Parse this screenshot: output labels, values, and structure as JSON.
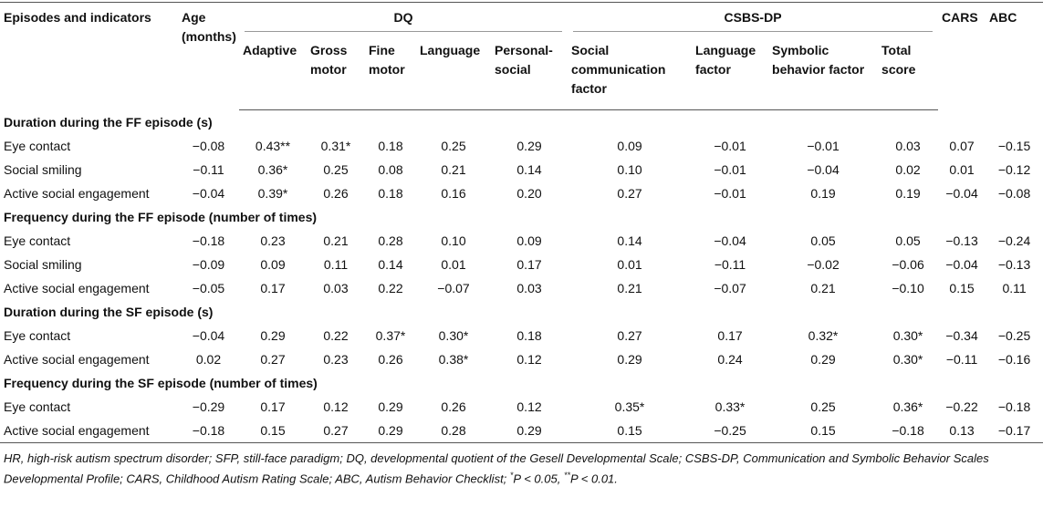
{
  "header": {
    "label": "Episodes and indicators",
    "age": "Age (months)",
    "dq": "DQ",
    "csbs": "CSBS-DP",
    "cars": "CARS",
    "abc": "ABC",
    "dq_sub": [
      "Adaptive",
      "Gross motor",
      "Fine motor",
      "Language",
      "Personal-social"
    ],
    "csbs_sub": [
      "Social communication factor",
      "Language factor",
      "Symbolic behavior factor",
      "Total score"
    ]
  },
  "sections": [
    {
      "title": "Duration during the FF episode (s)",
      "rows": [
        {
          "label": "Eye contact",
          "values": [
            "−0.08",
            "0.43**",
            "0.31*",
            "0.18",
            "0.25",
            "0.29",
            "0.09",
            "−0.01",
            "−0.01",
            "0.03",
            "0.07",
            "−0.15"
          ]
        },
        {
          "label": "Social smiling",
          "values": [
            "−0.11",
            "0.36*",
            "0.25",
            "0.08",
            "0.21",
            "0.14",
            "0.10",
            "−0.01",
            "−0.04",
            "0.02",
            "0.01",
            "−0.12"
          ]
        },
        {
          "label": "Active social engagement",
          "values": [
            "−0.04",
            "0.39*",
            "0.26",
            "0.18",
            "0.16",
            "0.20",
            "0.27",
            "−0.01",
            "0.19",
            "0.19",
            "−0.04",
            "−0.08"
          ]
        }
      ]
    },
    {
      "title": "Frequency during the FF episode (number of times)",
      "rows": [
        {
          "label": "Eye contact",
          "values": [
            "−0.18",
            "0.23",
            "0.21",
            "0.28",
            "0.10",
            "0.09",
            "0.14",
            "−0.04",
            "0.05",
            "0.05",
            "−0.13",
            "−0.24"
          ]
        },
        {
          "label": "Social smiling",
          "values": [
            "−0.09",
            "0.09",
            "0.11",
            "0.14",
            "0.01",
            "0.17",
            "0.01",
            "−0.11",
            "−0.02",
            "−0.06",
            "−0.04",
            "−0.13"
          ]
        },
        {
          "label": "Active social engagement",
          "values": [
            "−0.05",
            "0.17",
            "0.03",
            "0.22",
            "−0.07",
            "0.03",
            "0.21",
            "−0.07",
            "0.21",
            "−0.10",
            "0.15",
            "0.11"
          ]
        }
      ]
    },
    {
      "title": "Duration during the SF episode (s)",
      "rows": [
        {
          "label": "Eye contact",
          "values": [
            "−0.04",
            "0.29",
            "0.22",
            "0.37*",
            "0.30*",
            "0.18",
            "0.27",
            "0.17",
            "0.32*",
            "0.30*",
            "−0.34",
            "−0.25"
          ]
        },
        {
          "label": "Active social engagement",
          "values": [
            "0.02",
            "0.27",
            "0.23",
            "0.26",
            "0.38*",
            "0.12",
            "0.29",
            "0.24",
            "0.29",
            "0.30*",
            "−0.11",
            "−0.16"
          ]
        }
      ]
    },
    {
      "title": "Frequency during the SF episode (number of times)",
      "rows": [
        {
          "label": "Eye contact",
          "values": [
            "−0.29",
            "0.17",
            "0.12",
            "0.29",
            "0.26",
            "0.12",
            "0.35*",
            "0.33*",
            "0.25",
            "0.36*",
            "−0.22",
            "−0.18"
          ]
        },
        {
          "label": "Active social engagement",
          "values": [
            "−0.18",
            "0.15",
            "0.27",
            "0.29",
            "0.28",
            "0.29",
            "0.15",
            "−0.25",
            "0.15",
            "−0.18",
            "0.13",
            "−0.17"
          ]
        }
      ]
    }
  ],
  "footnote": {
    "text": "HR, high-risk autism spectrum disorder; SFP, still-face paradigm; DQ, developmental quotient of the Gesell Developmental Scale; CSBS-DP, Communication and Symbolic Behavior Scales Developmental Profile; CARS, Childhood Autism Rating Scale; ABC, Autism Behavior Checklist; ",
    "mark1": "*",
    "sig1": "P < 0.05, ",
    "mark2": "**",
    "sig2": "P < 0.01."
  }
}
